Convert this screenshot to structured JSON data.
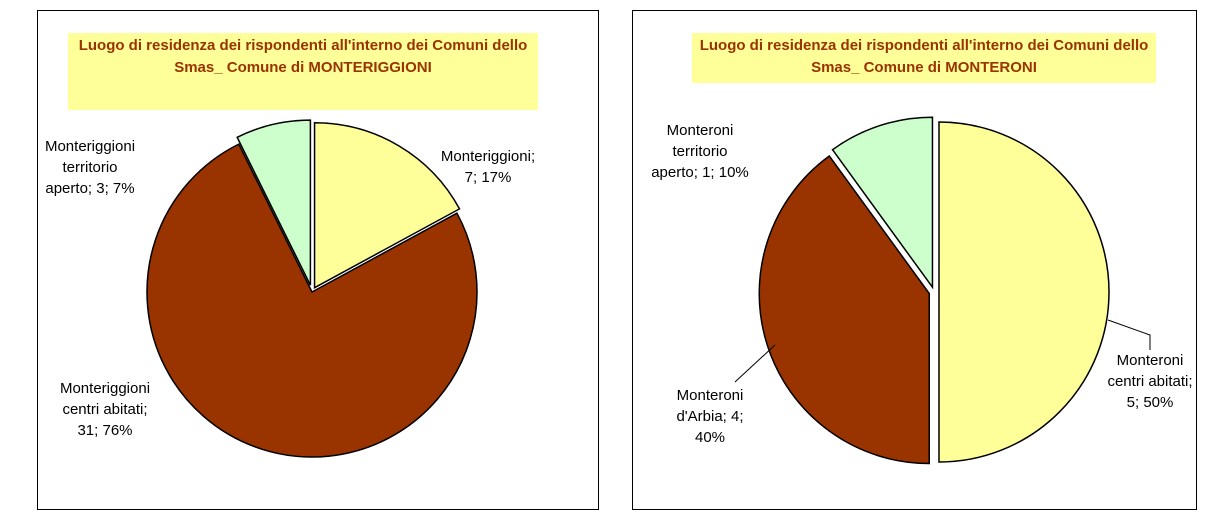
{
  "chart_data": [
    {
      "type": "pie",
      "title": "Luogo di residenza dei rispondenti all'interno dei Comuni dello Smas_ Comune di MONTERIGGIONI",
      "values": [
        7,
        31,
        3
      ],
      "value_labels": [
        "Monteriggioni; 7; 17%",
        "Monteriggioni centri abitati; 31; 76%",
        "Monteriggioni territorio aperto; 3; 7%"
      ],
      "colors": [
        "#ffff99",
        "#993300",
        "#ccffcc"
      ]
    },
    {
      "type": "pie",
      "title": "Luogo di residenza dei rispondenti all'interno dei Comuni dello Smas_ Comune di MONTERONI",
      "values": [
        5,
        4,
        1
      ],
      "value_labels": [
        "Monteroni centri abitati; 5; 50%",
        "Monteroni d'Arbia; 4; 40%",
        "Monteroni territorio aperto; 1; 10%"
      ],
      "colors": [
        "#ffff99",
        "#993300",
        "#ccffcc"
      ]
    }
  ]
}
